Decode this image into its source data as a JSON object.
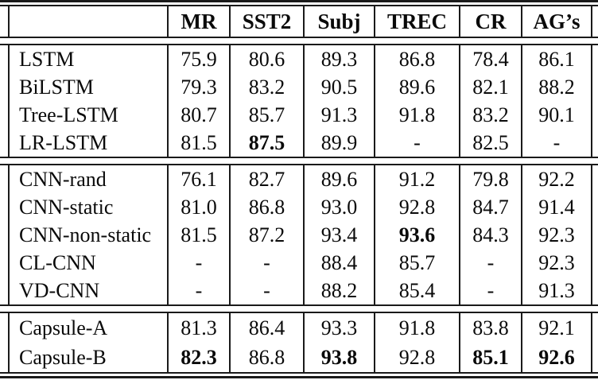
{
  "table": {
    "columns": [
      "",
      "MR",
      "SST2",
      "Subj",
      "TREC",
      "CR",
      "AG’s"
    ],
    "groups": [
      {
        "rows": [
          {
            "label": "LSTM",
            "cells": [
              "75.9",
              "80.6",
              "89.3",
              "86.8",
              "78.4",
              "86.1"
            ]
          },
          {
            "label": "BiLSTM",
            "cells": [
              "79.3",
              "83.2",
              "90.5",
              "89.6",
              "82.1",
              "88.2"
            ]
          },
          {
            "label": "Tree-LSTM",
            "cells": [
              "80.7",
              "85.7",
              "91.3",
              "91.8",
              "83.2",
              "90.1"
            ]
          },
          {
            "label": "LR-LSTM",
            "cells": [
              "81.5",
              "87.5",
              "89.9",
              "-",
              "82.5",
              "-"
            ]
          }
        ]
      },
      {
        "rows": [
          {
            "label": "CNN-rand",
            "cells": [
              "76.1",
              "82.7",
              "89.6",
              "91.2",
              "79.8",
              "92.2"
            ]
          },
          {
            "label": "CNN-static",
            "cells": [
              "81.0",
              "86.8",
              "93.0",
              "92.8",
              "84.7",
              "91.4"
            ]
          },
          {
            "label": "CNN-non-static",
            "cells": [
              "81.5",
              "87.2",
              "93.4",
              "93.6",
              "84.3",
              "92.3"
            ]
          },
          {
            "label": "CL-CNN",
            "cells": [
              "-",
              "-",
              "88.4",
              "85.7",
              "-",
              "92.3"
            ]
          },
          {
            "label": "VD-CNN",
            "cells": [
              "-",
              "-",
              "88.2",
              "85.4",
              "-",
              "91.3"
            ]
          }
        ]
      },
      {
        "rows": [
          {
            "label": "Capsule-A",
            "cells": [
              "81.3",
              "86.4",
              "93.3",
              "91.8",
              "83.8",
              "92.1"
            ]
          },
          {
            "label": "Capsule-B",
            "cells": [
              "82.3",
              "86.8",
              "93.8",
              "92.8",
              "85.1",
              "92.6"
            ]
          }
        ]
      }
    ],
    "bold_cells": [
      {
        "row": "LR-LSTM",
        "column": "SST2"
      },
      {
        "row": "CNN-non-static",
        "column": "TREC"
      },
      {
        "row": "Capsule-B",
        "column": "MR"
      },
      {
        "row": "Capsule-B",
        "column": "Subj"
      },
      {
        "row": "Capsule-B",
        "column": "CR"
      },
      {
        "row": "Capsule-B",
        "column": "AG’s"
      }
    ],
    "colors": {
      "text": "#0a0a0a",
      "rule": "#1a1a1a",
      "background": "#ffffff"
    }
  }
}
